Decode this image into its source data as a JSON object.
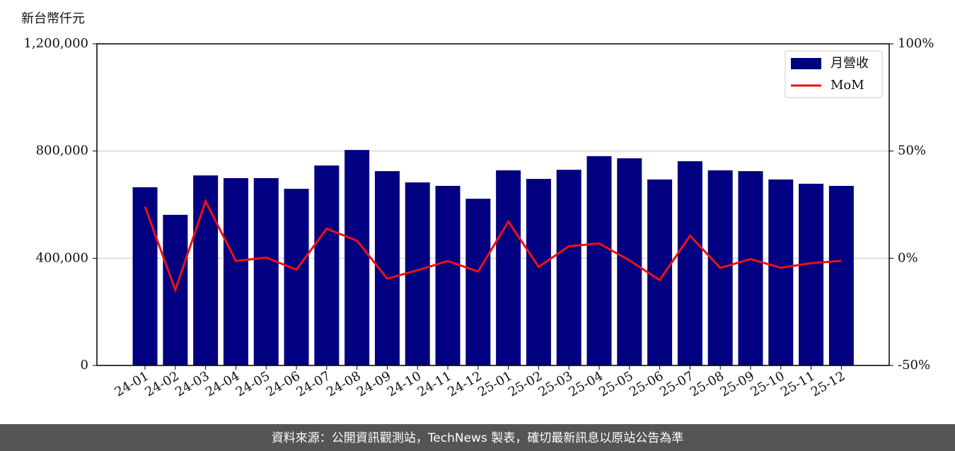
{
  "chart_data": {
    "type": "bar",
    "y_label": "新台幣仟元",
    "categories": [
      "24-01",
      "24-02",
      "24-03",
      "24-04",
      "24-05",
      "24-06",
      "24-07",
      "24-08",
      "24-09",
      "24-10",
      "24-11",
      "24-12",
      "25-01",
      "25-02",
      "25-03",
      "25-04",
      "25-05",
      "25-06",
      "25-07",
      "25-08",
      "25-09",
      "25-10",
      "25-11",
      "25-12"
    ],
    "series": [
      {
        "name": "月營收",
        "type": "bar",
        "color": "#000080",
        "values": [
          665000,
          562000,
          709000,
          699000,
          699000,
          659000,
          746000,
          804000,
          725000,
          683000,
          670000,
          622000,
          728000,
          696000,
          730000,
          781000,
          773000,
          694000,
          762000,
          728000,
          725000,
          694000,
          678000,
          670000
        ]
      },
      {
        "name": "MoM",
        "type": "line",
        "axis": "y2",
        "color": "#ee1111",
        "values": [
          24.0,
          -14.8,
          26.6,
          -1.3,
          0.3,
          -5.3,
          13.8,
          8.2,
          -9.5,
          -5.6,
          -1.3,
          -6.2,
          17.1,
          -4.0,
          5.6,
          6.9,
          -1.0,
          -10.2,
          10.5,
          -4.5,
          -0.4,
          -4.4,
          -2.3,
          -1.2
        ]
      }
    ],
    "ylim": [
      0,
      1200000
    ],
    "yticks": [
      0,
      {
        "value": 400000,
        "label": "400,000"
      },
      {
        "value": 800000,
        "label": "800,000"
      },
      {
        "value": 1200000,
        "label": "1,200,000"
      }
    ],
    "y2lim": [
      -50,
      100
    ],
    "y2ticks": [
      {
        "value": -50,
        "label": "-50%"
      },
      {
        "value": 0,
        "label": "0%"
      },
      {
        "value": 50,
        "label": "50%"
      },
      {
        "value": 100,
        "label": "100%"
      }
    ],
    "grid": true,
    "legend": "upper right",
    "footer": "資料來源：公開資訊觀測站，TechNews 製表，確切最新訊息以原站公告為準"
  }
}
